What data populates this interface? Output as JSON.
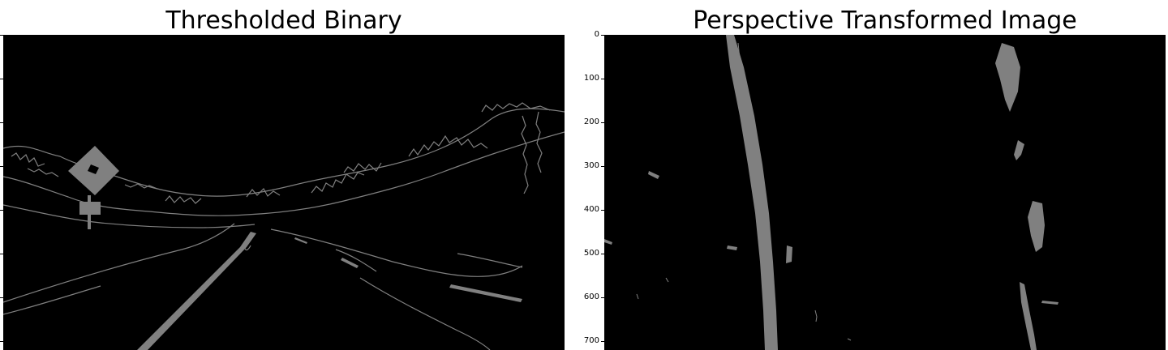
{
  "left_panel": {
    "title": "Thresholded Binary"
  },
  "right_panel": {
    "title": "Perspective Transformed Image",
    "y_ticks": [
      "0",
      "100",
      "200",
      "300",
      "400",
      "500",
      "600",
      "700"
    ]
  },
  "colors": {
    "background": "#000000",
    "lane_pixels": "#808080",
    "page": "#ffffff"
  }
}
